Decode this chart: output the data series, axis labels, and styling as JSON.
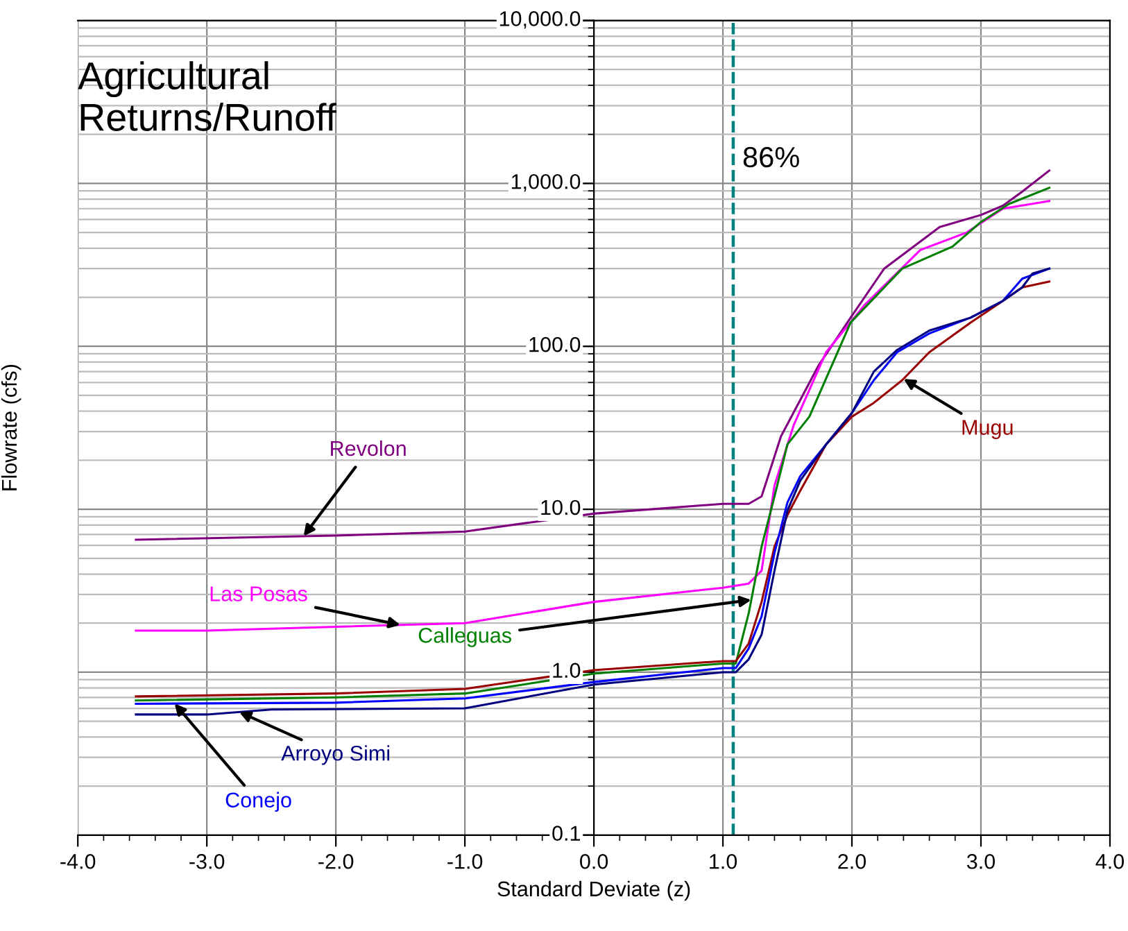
{
  "chart_data": {
    "type": "line",
    "title": "Agricultural\nReturns/Runoff",
    "xlabel": "Standard Deviate (z)",
    "ylabel": "Flowrate (cfs)",
    "log": "y",
    "grid": true,
    "legend": false,
    "marker": "none",
    "line_style": "solid",
    "xlim": [
      -4,
      4
    ],
    "xticks": [
      {
        "value": -4,
        "label": "-4.0"
      },
      {
        "value": -3,
        "label": "-3.0"
      },
      {
        "value": -2,
        "label": "-2.0"
      },
      {
        "value": -1,
        "label": "-1.0"
      },
      {
        "value": 0,
        "label": "0.0"
      },
      {
        "value": 1,
        "label": "1.0"
      },
      {
        "value": 2,
        "label": "2.0"
      },
      {
        "value": 3,
        "label": "3.0"
      },
      {
        "value": 4,
        "label": "4.0"
      }
    ],
    "ylim": [
      0.1,
      10000
    ],
    "yticks": [
      {
        "value": 0.1,
        "label": "0.1"
      },
      {
        "value": 1,
        "label": "1.0"
      },
      {
        "value": 10,
        "label": "10.0"
      },
      {
        "value": 100,
        "label": "100.0"
      },
      {
        "value": 1000,
        "label": "1,000.0"
      },
      {
        "value": 10000,
        "label": "10,000.0"
      }
    ],
    "ref_lines": [
      {
        "axis": "x",
        "value": 1.08,
        "color": "#008080",
        "line_style": "dashed"
      }
    ],
    "annotations": [
      "86%"
    ],
    "series": [
      {
        "name": "Revolon",
        "color": "#800080",
        "x": [
          -3.55,
          -2,
          -1,
          0,
          1.0,
          1.2,
          1.3,
          1.45,
          1.74,
          1.99,
          2.25,
          2.68,
          3.0,
          3.17,
          3.32,
          3.53
        ],
        "values": [
          6.5,
          6.9,
          7.3,
          9.4,
          10.8,
          10.8,
          12,
          28,
          76,
          150,
          300,
          540,
          640,
          730,
          890,
          1200
        ]
      },
      {
        "name": "Las Posas",
        "color": "#ff00ff",
        "x": [
          -3.55,
          -3,
          -2,
          -1,
          0,
          1.0,
          1.2,
          1.3,
          1.4,
          1.55,
          1.8,
          2.1,
          2.53,
          2.89,
          3.17,
          3.53
        ],
        "values": [
          1.8,
          1.8,
          1.9,
          2.0,
          2.7,
          3.3,
          3.5,
          4.2,
          14,
          33,
          92,
          180,
          390,
          500,
          700,
          780
        ]
      },
      {
        "name": "Calleguas",
        "color": "#008000",
        "x": [
          -3.55,
          -2,
          -1,
          0,
          1.0,
          1.1,
          1.2,
          1.3,
          1.4,
          1.5,
          1.67,
          1.99,
          2.39,
          2.78,
          3.0,
          3.22,
          3.53
        ],
        "values": [
          0.67,
          0.7,
          0.74,
          0.98,
          1.13,
          1.13,
          2.3,
          5.9,
          12,
          25,
          37,
          140,
          300,
          410,
          580,
          750,
          940
        ]
      },
      {
        "name": "Mugu",
        "color": "#990000",
        "x": [
          -3.55,
          -2,
          -1,
          0,
          1.0,
          1.1,
          1.2,
          1.3,
          1.4,
          1.5,
          1.6,
          1.8,
          2.0,
          2.17,
          2.39,
          2.6,
          2.92,
          3.17,
          3.32,
          3.53
        ],
        "values": [
          0.71,
          0.74,
          0.79,
          1.03,
          1.17,
          1.17,
          1.5,
          2.7,
          5.9,
          9.2,
          13,
          25,
          37,
          45,
          62,
          92,
          140,
          190,
          230,
          250
        ]
      },
      {
        "name": "Conejo",
        "color": "#0000ff",
        "x": [
          -3.55,
          -2,
          -1,
          0,
          1.0,
          1.1,
          1.2,
          1.3,
          1.4,
          1.5,
          1.6,
          1.8,
          2.0,
          2.17,
          2.35,
          2.6,
          2.92,
          3.17,
          3.32,
          3.53
        ],
        "values": [
          0.64,
          0.65,
          0.69,
          0.87,
          1.06,
          1.06,
          1.4,
          2.2,
          5.4,
          11,
          16,
          25,
          39,
          62,
          92,
          120,
          150,
          190,
          260,
          300
        ]
      },
      {
        "name": "Arroyo Simi",
        "color": "#000080",
        "x": [
          -3.55,
          -3,
          -2.5,
          -1,
          0,
          1.0,
          1.1,
          1.2,
          1.3,
          1.4,
          1.5,
          1.6,
          1.8,
          2.0,
          2.17,
          2.35,
          2.6,
          2.92,
          3.17,
          3.32,
          3.4,
          3.53
        ],
        "values": [
          0.55,
          0.55,
          0.59,
          0.6,
          0.84,
          1.0,
          1.0,
          1.2,
          1.7,
          4.2,
          9.8,
          15,
          25,
          39,
          70,
          95,
          125,
          150,
          190,
          230,
          280,
          300
        ]
      }
    ]
  }
}
